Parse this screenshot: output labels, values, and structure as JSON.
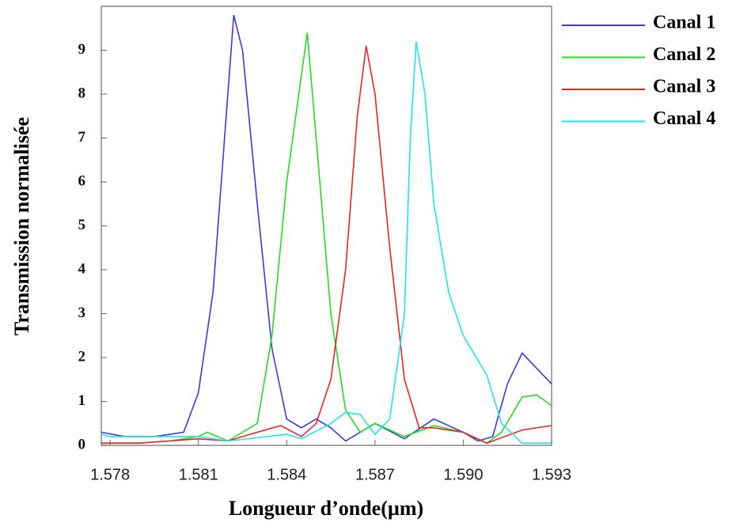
{
  "chart_data": {
    "type": "line",
    "xlabel": "Longueur  d’onde(µm)",
    "ylabel": "Transmission normalisée",
    "xlim": [
      1.5777,
      1.593
    ],
    "ylim": [
      0,
      10
    ],
    "xticks": [
      1.578,
      1.581,
      1.584,
      1.587,
      {
        "value": 1.59,
        "label": "1.590"
      },
      1.593
    ],
    "yticks": [
      0,
      1,
      2,
      3,
      4,
      5,
      6,
      7,
      8,
      9
    ],
    "series": [
      {
        "name": "Canal  1",
        "color": "#3a3adf",
        "x": [
          1.5777,
          1.5785,
          1.5795,
          1.5805,
          1.581,
          1.5815,
          1.582,
          1.5822,
          1.5825,
          1.583,
          1.5835,
          1.584,
          1.5845,
          1.585,
          1.5855,
          1.586,
          1.587,
          1.588,
          1.589,
          1.59,
          1.5905,
          1.591,
          1.5915,
          1.592,
          1.593
        ],
        "values": [
          0.3,
          0.2,
          0.2,
          0.3,
          1.2,
          3.5,
          8,
          9.8,
          9,
          5.5,
          2.2,
          0.6,
          0.4,
          0.6,
          0.4,
          0.1,
          0.5,
          0.15,
          0.6,
          0.3,
          0.1,
          0.2,
          1.4,
          2.1,
          1.4
        ]
      },
      {
        "name": "Canal  2",
        "color": "#22dd22",
        "x": [
          1.5777,
          1.579,
          1.58,
          1.581,
          1.5813,
          1.582,
          1.583,
          1.5835,
          1.584,
          1.5847,
          1.585,
          1.5855,
          1.586,
          1.5865,
          1.587,
          1.588,
          1.589,
          1.59,
          1.5908,
          1.5913,
          1.592,
          1.5925,
          1.593
        ],
        "values": [
          0.05,
          0.05,
          0.1,
          0.2,
          0.3,
          0.1,
          0.5,
          2.5,
          6,
          9.4,
          7,
          3,
          0.8,
          0.3,
          0.5,
          0.2,
          0.45,
          0.3,
          0.05,
          0.3,
          1.1,
          1.15,
          0.9
        ]
      },
      {
        "name": "Canal  3",
        "color": "#ee2222",
        "x": [
          1.5777,
          1.579,
          1.58,
          1.581,
          1.582,
          1.583,
          1.5838,
          1.5845,
          1.585,
          1.5855,
          1.586,
          1.5864,
          1.5867,
          1.587,
          1.5875,
          1.588,
          1.5885,
          1.589,
          1.59,
          1.5908,
          1.592,
          1.593
        ],
        "values": [
          0.05,
          0.05,
          0.1,
          0.15,
          0.1,
          0.3,
          0.45,
          0.2,
          0.5,
          1.5,
          4,
          7.5,
          9.1,
          8,
          4.5,
          1.5,
          0.4,
          0.4,
          0.3,
          0.05,
          0.35,
          0.45
        ]
      },
      {
        "name": "Canal  4",
        "color": "#22e5e5",
        "x": [
          1.5777,
          1.578,
          1.579,
          1.58,
          1.581,
          1.582,
          1.584,
          1.5845,
          1.5855,
          1.586,
          1.5865,
          1.587,
          1.5875,
          1.588,
          1.5882,
          1.5884,
          1.5887,
          1.589,
          1.5895,
          1.59,
          1.5908,
          1.5913,
          1.592,
          1.593
        ],
        "values": [
          0.25,
          0.2,
          0.2,
          0.2,
          0.2,
          0.1,
          0.25,
          0.15,
          0.5,
          0.75,
          0.7,
          0.25,
          0.6,
          3,
          7,
          9.2,
          8,
          5.5,
          3.5,
          2.5,
          1.6,
          0.5,
          0.05,
          0.05
        ]
      }
    ]
  }
}
